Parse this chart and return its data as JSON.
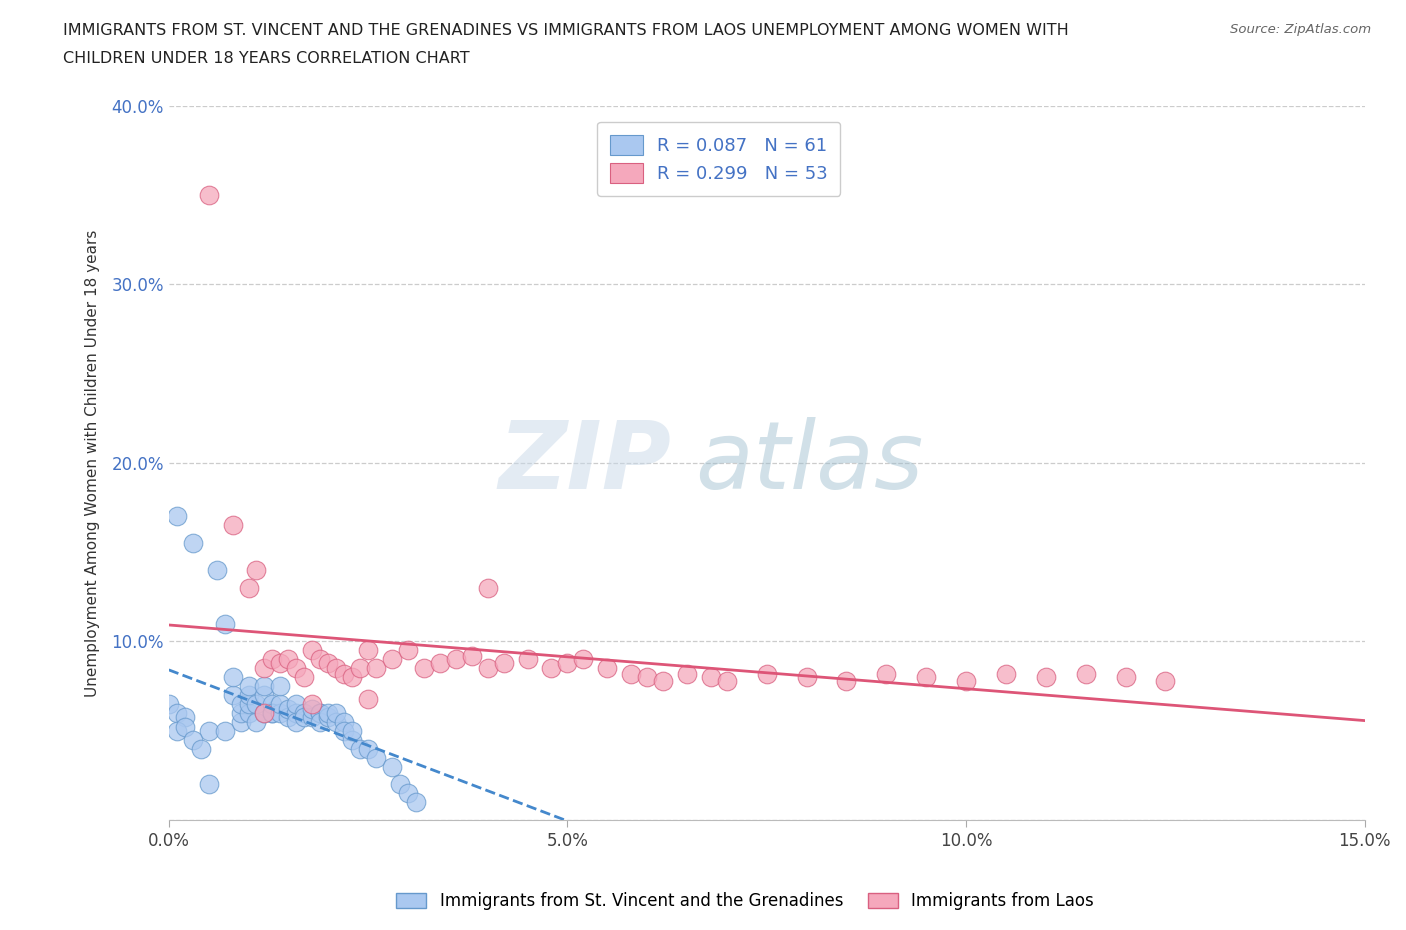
{
  "title_line1": "IMMIGRANTS FROM ST. VINCENT AND THE GRENADINES VS IMMIGRANTS FROM LAOS UNEMPLOYMENT AMONG WOMEN WITH",
  "title_line2": "CHILDREN UNDER 18 YEARS CORRELATION CHART",
  "source": "Source: ZipAtlas.com",
  "ylabel": "Unemployment Among Women with Children Under 18 years",
  "xlim": [
    0.0,
    0.15
  ],
  "ylim": [
    0.0,
    0.4
  ],
  "xticks": [
    0.0,
    0.05,
    0.1,
    0.15
  ],
  "xticklabels": [
    "0.0%",
    "5.0%",
    "10.0%",
    "15.0%"
  ],
  "yticks": [
    0.0,
    0.1,
    0.2,
    0.3,
    0.4
  ],
  "yticklabels": [
    "",
    "10.0%",
    "20.0%",
    "30.0%",
    "40.0%"
  ],
  "series1_color": "#aac8f0",
  "series1_edge": "#6699cc",
  "series2_color": "#f5a8bc",
  "series2_edge": "#d96080",
  "trend1_color": "#4488cc",
  "trend2_color": "#dd5577",
  "legend_R1": "R = 0.087",
  "legend_N1": "N = 61",
  "legend_R2": "R = 0.299",
  "legend_N2": "N = 53",
  "label1": "Immigrants from St. Vincent and the Grenadines",
  "label2": "Immigrants from Laos",
  "watermark_zip": "ZIP",
  "watermark_atlas": "atlas",
  "series1_x": [
    0.001,
    0.003,
    0.005,
    0.005,
    0.006,
    0.007,
    0.007,
    0.008,
    0.008,
    0.009,
    0.009,
    0.009,
    0.01,
    0.01,
    0.01,
    0.01,
    0.011,
    0.011,
    0.012,
    0.012,
    0.012,
    0.013,
    0.013,
    0.013,
    0.014,
    0.014,
    0.014,
    0.015,
    0.015,
    0.016,
    0.016,
    0.016,
    0.017,
    0.017,
    0.018,
    0.018,
    0.019,
    0.019,
    0.019,
    0.02,
    0.02,
    0.021,
    0.021,
    0.022,
    0.022,
    0.023,
    0.023,
    0.024,
    0.025,
    0.026,
    0.028,
    0.029,
    0.03,
    0.031,
    0.0,
    0.001,
    0.002,
    0.001,
    0.002,
    0.003,
    0.004
  ],
  "series1_y": [
    0.17,
    0.155,
    0.05,
    0.02,
    0.14,
    0.05,
    0.11,
    0.07,
    0.08,
    0.055,
    0.06,
    0.065,
    0.06,
    0.065,
    0.07,
    0.075,
    0.055,
    0.065,
    0.06,
    0.07,
    0.075,
    0.06,
    0.065,
    0.06,
    0.06,
    0.065,
    0.075,
    0.058,
    0.062,
    0.06,
    0.065,
    0.055,
    0.06,
    0.058,
    0.058,
    0.062,
    0.06,
    0.06,
    0.055,
    0.058,
    0.06,
    0.055,
    0.06,
    0.055,
    0.05,
    0.045,
    0.05,
    0.04,
    0.04,
    0.035,
    0.03,
    0.02,
    0.015,
    0.01,
    0.065,
    0.06,
    0.058,
    0.05,
    0.052,
    0.045,
    0.04
  ],
  "series2_x": [
    0.005,
    0.008,
    0.01,
    0.011,
    0.012,
    0.013,
    0.014,
    0.015,
    0.016,
    0.017,
    0.018,
    0.019,
    0.02,
    0.021,
    0.022,
    0.023,
    0.024,
    0.025,
    0.026,
    0.028,
    0.03,
    0.032,
    0.034,
    0.036,
    0.038,
    0.04,
    0.042,
    0.045,
    0.048,
    0.05,
    0.052,
    0.055,
    0.058,
    0.06,
    0.062,
    0.065,
    0.068,
    0.07,
    0.075,
    0.08,
    0.085,
    0.09,
    0.095,
    0.1,
    0.105,
    0.11,
    0.115,
    0.12,
    0.125,
    0.04,
    0.025,
    0.018,
    0.012
  ],
  "series2_y": [
    0.35,
    0.165,
    0.13,
    0.14,
    0.085,
    0.09,
    0.088,
    0.09,
    0.085,
    0.08,
    0.095,
    0.09,
    0.088,
    0.085,
    0.082,
    0.08,
    0.085,
    0.095,
    0.085,
    0.09,
    0.095,
    0.085,
    0.088,
    0.09,
    0.092,
    0.085,
    0.088,
    0.09,
    0.085,
    0.088,
    0.09,
    0.085,
    0.082,
    0.08,
    0.078,
    0.082,
    0.08,
    0.078,
    0.082,
    0.08,
    0.078,
    0.082,
    0.08,
    0.078,
    0.082,
    0.08,
    0.082,
    0.08,
    0.078,
    0.13,
    0.068,
    0.065,
    0.06
  ]
}
